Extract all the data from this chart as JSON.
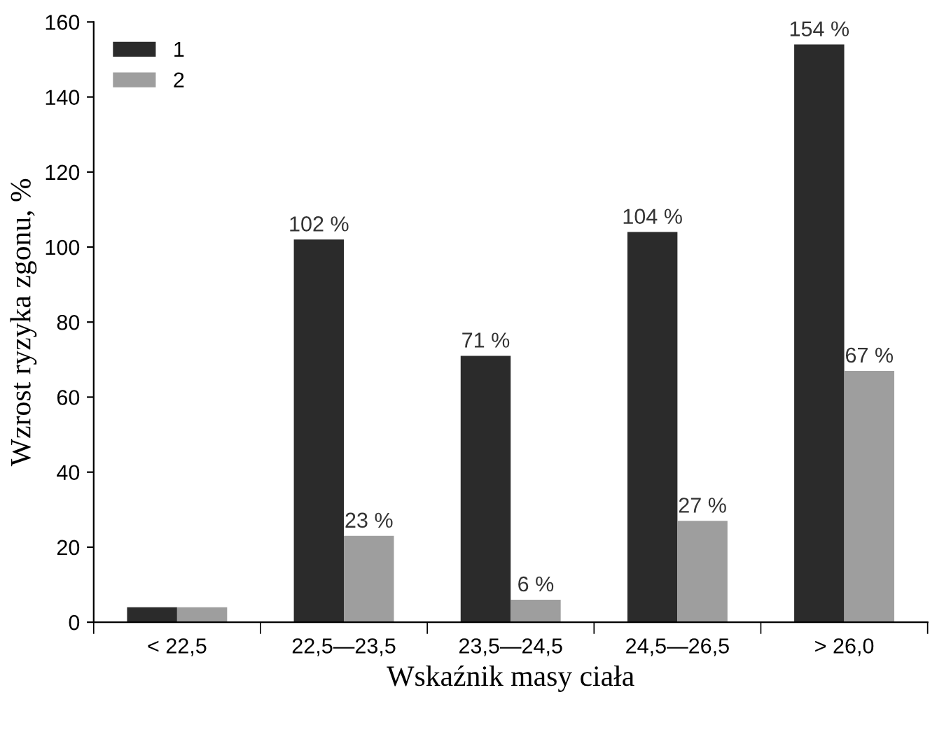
{
  "chart_data": {
    "type": "bar",
    "xlabel": "Wskaźnik masy ciała",
    "ylabel": "Wzrost ryzyka zgonu, %",
    "categories": [
      "< 22,5",
      "22,5—23,5",
      "23,5—24,5",
      "24,5—26,5",
      "> 26,0"
    ],
    "series": [
      {
        "name": "1",
        "color": "#2b2b2b",
        "values": [
          4,
          102,
          71,
          104,
          154
        ],
        "value_labels": [
          null,
          "102 %",
          "71 %",
          "104 %",
          "154 %"
        ]
      },
      {
        "name": "2",
        "color": "#9e9e9e",
        "values": [
          4,
          23,
          6,
          27,
          67
        ],
        "value_labels": [
          null,
          "23 %",
          "6 %",
          "27 %",
          "67 %"
        ]
      }
    ],
    "ylim": [
      0,
      160
    ],
    "yticks": [
      0,
      20,
      40,
      60,
      80,
      100,
      120,
      140,
      160
    ],
    "grid": false,
    "legend": "top left"
  }
}
